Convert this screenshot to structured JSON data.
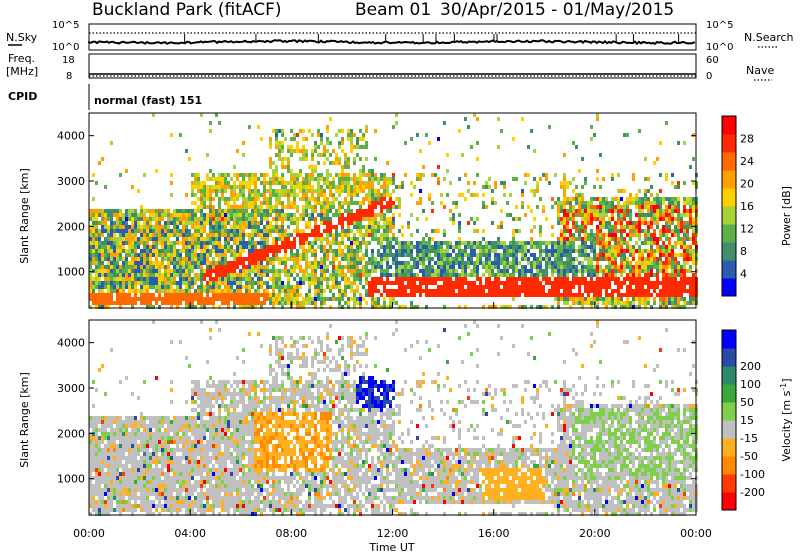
{
  "header": {
    "station": "Buckland Park (fitACF)",
    "beam": "Beam 01",
    "date_range": "30/Apr/2015 - 01/May/2015"
  },
  "params": {
    "nsky_label": "N.Sky",
    "nsearch_label": "N.Search",
    "freq_label_1": "Freq.",
    "freq_label_2": "[MHz]",
    "nave_label": "Nave",
    "cpid_label": "CPID",
    "cpid_value": "normal (fast) 151",
    "nsky_ticks": [
      "10^5",
      "10^0"
    ],
    "nsearch_ticks": [
      "10^5",
      "10^0"
    ],
    "freq_ticks": [
      "18",
      "8"
    ],
    "nave_ticks": [
      "60",
      "0"
    ]
  },
  "colors": {
    "power": [
      "#0000ff",
      "#2a5db0",
      "#3f8f6a",
      "#5bb04a",
      "#a6d23a",
      "#ffd000",
      "#ffa000",
      "#ff6a00",
      "#ff2a00",
      "#ff0000"
    ],
    "velocity": [
      "#ff0000",
      "#ff3a00",
      "#ff8a00",
      "#ffb020",
      "#c0c0c0",
      "#7ed04a",
      "#3aa83a",
      "#2a8a6a",
      "#2a4aa8",
      "#0000ff"
    ]
  },
  "chart_data": [
    {
      "type": "heatmap",
      "name": "power",
      "xlabel": "",
      "ylabel": "Slant Range [km]",
      "x_range": [
        "00:00",
        "00:00"
      ],
      "ylim": [
        200,
        4500
      ],
      "yticks": [
        1000,
        2000,
        3000,
        4000
      ],
      "colorbar": {
        "label": "Power [dB]",
        "range": [
          0,
          32
        ],
        "ticks": [
          4,
          8,
          12,
          16,
          20,
          24,
          28
        ]
      },
      "features": [
        {
          "t_start": 0.0,
          "t_end": 7.0,
          "range_km": [
            600,
            2200
          ],
          "level": "mixed 6-20 dB"
        },
        {
          "t_start": 4.5,
          "t_end": 12.0,
          "range_km": [
            900,
            2600
          ],
          "level": "strong 24-32 dB band rising"
        },
        {
          "t_start": 11.0,
          "t_end": 24.0,
          "range_km": [
            500,
            1000
          ],
          "level": "strong 24-32 dB"
        },
        {
          "t_start": 19.0,
          "t_end": 24.0,
          "range_km": [
            800,
            2400
          ],
          "level": "mixed 12-28 dB"
        }
      ]
    },
    {
      "type": "heatmap",
      "name": "velocity",
      "xlabel": "Time UT",
      "ylabel": "Slant Range [km]",
      "x_range": [
        "00:00",
        "00:00"
      ],
      "xticks": [
        "00:00",
        "04:00",
        "08:00",
        "12:00",
        "16:00",
        "20:00",
        "00:00"
      ],
      "ylim": [
        200,
        4500
      ],
      "yticks": [
        1000,
        2000,
        3000,
        4000
      ],
      "colorbar": {
        "label": "Velocity [m s^-1]",
        "ticks": [
          "-200",
          "-100",
          "-50",
          "-15",
          "15",
          "50",
          "100",
          "200"
        ]
      }
    }
  ]
}
